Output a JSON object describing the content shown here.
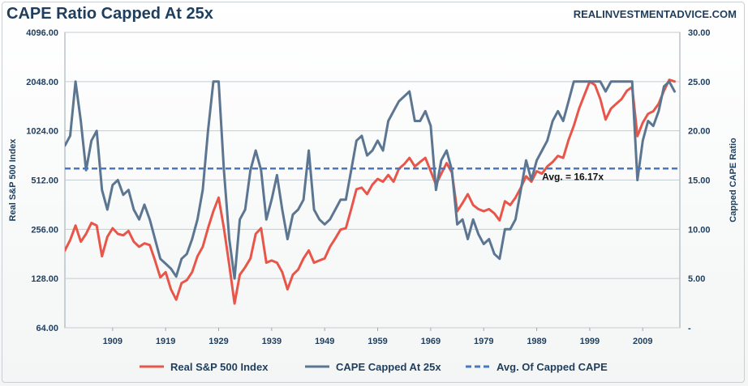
{
  "title": "CAPE Ratio Capped At 25x",
  "source": "REALINVESTMENTADVICE.COM",
  "chart_data": {
    "type": "line",
    "title": "CAPE Ratio Capped At 25x",
    "x_ticks": [
      1909,
      1919,
      1929,
      1939,
      1949,
      1959,
      1969,
      1979,
      1989,
      1999,
      2009
    ],
    "xlim": [
      1900,
      2016
    ],
    "y_left": {
      "label": "Real S&P 500 Index",
      "scale": "log2",
      "ticks": [
        "64.00",
        "128.00",
        "256.00",
        "512.00",
        "1024.00",
        "2048.00",
        "4096.00"
      ],
      "ylim": [
        64,
        4096
      ]
    },
    "y_right": {
      "label": "Capped CAPE Ratio",
      "ticks": [
        "-",
        "5.00",
        "10.00",
        "15.00",
        "20.00",
        "25.00",
        "30.00"
      ],
      "ylim": [
        0,
        30
      ]
    },
    "grid": true,
    "legend_position": "bottom",
    "series": [
      {
        "name": "Real S&P 500 Index",
        "axis": "left",
        "color": "#e8564a",
        "x": [
          1900,
          1901,
          1902,
          1903,
          1904,
          1905,
          1906,
          1907,
          1908,
          1909,
          1910,
          1911,
          1912,
          1913,
          1914,
          1915,
          1916,
          1917,
          1918,
          1919,
          1920,
          1921,
          1922,
          1923,
          1924,
          1925,
          1926,
          1927,
          1928,
          1929,
          1930,
          1931,
          1932,
          1933,
          1934,
          1935,
          1936,
          1937,
          1938,
          1939,
          1940,
          1941,
          1942,
          1943,
          1944,
          1945,
          1946,
          1947,
          1948,
          1949,
          1950,
          1951,
          1952,
          1953,
          1954,
          1955,
          1956,
          1957,
          1958,
          1959,
          1960,
          1961,
          1962,
          1963,
          1964,
          1965,
          1966,
          1967,
          1968,
          1969,
          1970,
          1971,
          1972,
          1973,
          1974,
          1975,
          1976,
          1977,
          1978,
          1979,
          1980,
          1981,
          1982,
          1983,
          1984,
          1985,
          1986,
          1987,
          1988,
          1989,
          1990,
          1991,
          1992,
          1993,
          1994,
          1995,
          1996,
          1997,
          1998,
          1999,
          2000,
          2001,
          2002,
          2003,
          2004,
          2005,
          2006,
          2007,
          2008,
          2009,
          2010,
          2011,
          2012,
          2013,
          2014,
          2015
        ],
        "values": [
          190,
          220,
          270,
          215,
          240,
          280,
          270,
          175,
          230,
          260,
          240,
          235,
          250,
          215,
          200,
          210,
          205,
          165,
          130,
          140,
          110,
          95,
          120,
          125,
          140,
          175,
          200,
          260,
          330,
          400,
          260,
          155,
          90,
          135,
          150,
          170,
          240,
          260,
          160,
          165,
          160,
          140,
          110,
          135,
          145,
          170,
          190,
          160,
          165,
          170,
          200,
          225,
          255,
          260,
          340,
          450,
          460,
          420,
          480,
          520,
          500,
          550,
          500,
          600,
          640,
          700,
          620,
          660,
          700,
          580,
          480,
          560,
          650,
          570,
          330,
          370,
          420,
          360,
          340,
          330,
          340,
          320,
          290,
          380,
          360,
          400,
          460,
          540,
          500,
          580,
          560,
          620,
          660,
          720,
          700,
          900,
          1100,
          1400,
          1700,
          2050,
          1950,
          1600,
          1200,
          1400,
          1500,
          1600,
          1800,
          1900,
          950,
          1150,
          1300,
          1350,
          1500,
          1800,
          2100,
          2050
        ]
      },
      {
        "name": "CAPE Capped At 25x",
        "axis": "right",
        "color": "#5c7691",
        "x": [
          1900,
          1901,
          1902,
          1903,
          1904,
          1905,
          1906,
          1907,
          1908,
          1909,
          1910,
          1911,
          1912,
          1913,
          1914,
          1915,
          1916,
          1917,
          1918,
          1919,
          1920,
          1921,
          1922,
          1923,
          1924,
          1925,
          1926,
          1927,
          1928,
          1929,
          1930,
          1931,
          1932,
          1933,
          1934,
          1935,
          1936,
          1937,
          1938,
          1939,
          1940,
          1941,
          1942,
          1943,
          1944,
          1945,
          1946,
          1947,
          1948,
          1949,
          1950,
          1951,
          1952,
          1953,
          1954,
          1955,
          1956,
          1957,
          1958,
          1959,
          1960,
          1961,
          1962,
          1963,
          1964,
          1965,
          1966,
          1967,
          1968,
          1969,
          1970,
          1971,
          1972,
          1973,
          1974,
          1975,
          1976,
          1977,
          1978,
          1979,
          1980,
          1981,
          1982,
          1983,
          1984,
          1985,
          1986,
          1987,
          1988,
          1989,
          1990,
          1991,
          1992,
          1993,
          1994,
          1995,
          1996,
          1997,
          1998,
          1999,
          2000,
          2001,
          2002,
          2003,
          2004,
          2005,
          2006,
          2007,
          2008,
          2009,
          2010,
          2011,
          2012,
          2013,
          2014,
          2015
        ],
        "values": [
          18.5,
          19.5,
          25.0,
          21.0,
          16.0,
          19.0,
          20.0,
          14.0,
          12.0,
          14.5,
          15.0,
          13.5,
          14.0,
          12.0,
          11.0,
          12.5,
          11.0,
          9.0,
          7.0,
          6.5,
          6.0,
          5.2,
          7.0,
          7.5,
          9.0,
          11.0,
          14.0,
          20.0,
          25.0,
          25.0,
          16.0,
          9.0,
          5.0,
          11.0,
          12.0,
          16.0,
          18.0,
          16.0,
          11.0,
          13.0,
          15.5,
          12.0,
          9.0,
          11.5,
          12.0,
          13.0,
          18.0,
          12.0,
          11.0,
          10.5,
          11.0,
          12.0,
          13.0,
          13.0,
          16.0,
          19.0,
          19.5,
          17.5,
          18.0,
          19.0,
          18.0,
          21.0,
          22.0,
          23.0,
          23.5,
          24.0,
          21.0,
          21.0,
          22.0,
          20.5,
          14.0,
          17.0,
          18.0,
          16.0,
          10.5,
          11.0,
          9.0,
          11.0,
          9.5,
          8.5,
          9.0,
          7.5,
          7.0,
          10.0,
          10.0,
          11.0,
          14.0,
          17.0,
          15.0,
          17.0,
          18.0,
          19.0,
          21.0,
          22.0,
          21.0,
          23.0,
          25.0,
          25.0,
          25.0,
          25.0,
          25.0,
          25.0,
          24.0,
          25.0,
          25.0,
          25.0,
          25.0,
          25.0,
          15.0,
          19.0,
          21.0,
          20.5,
          22.0,
          24.5,
          25.0,
          24.0
        ]
      },
      {
        "name": "Avg. Of Capped CAPE",
        "axis": "right",
        "color": "#4a78c0",
        "style": "dashed",
        "constant": 16.17
      }
    ],
    "annotations": [
      {
        "text": "Avg. = 16.17x",
        "x": 1990,
        "y": 16.17,
        "axis": "right"
      }
    ]
  }
}
